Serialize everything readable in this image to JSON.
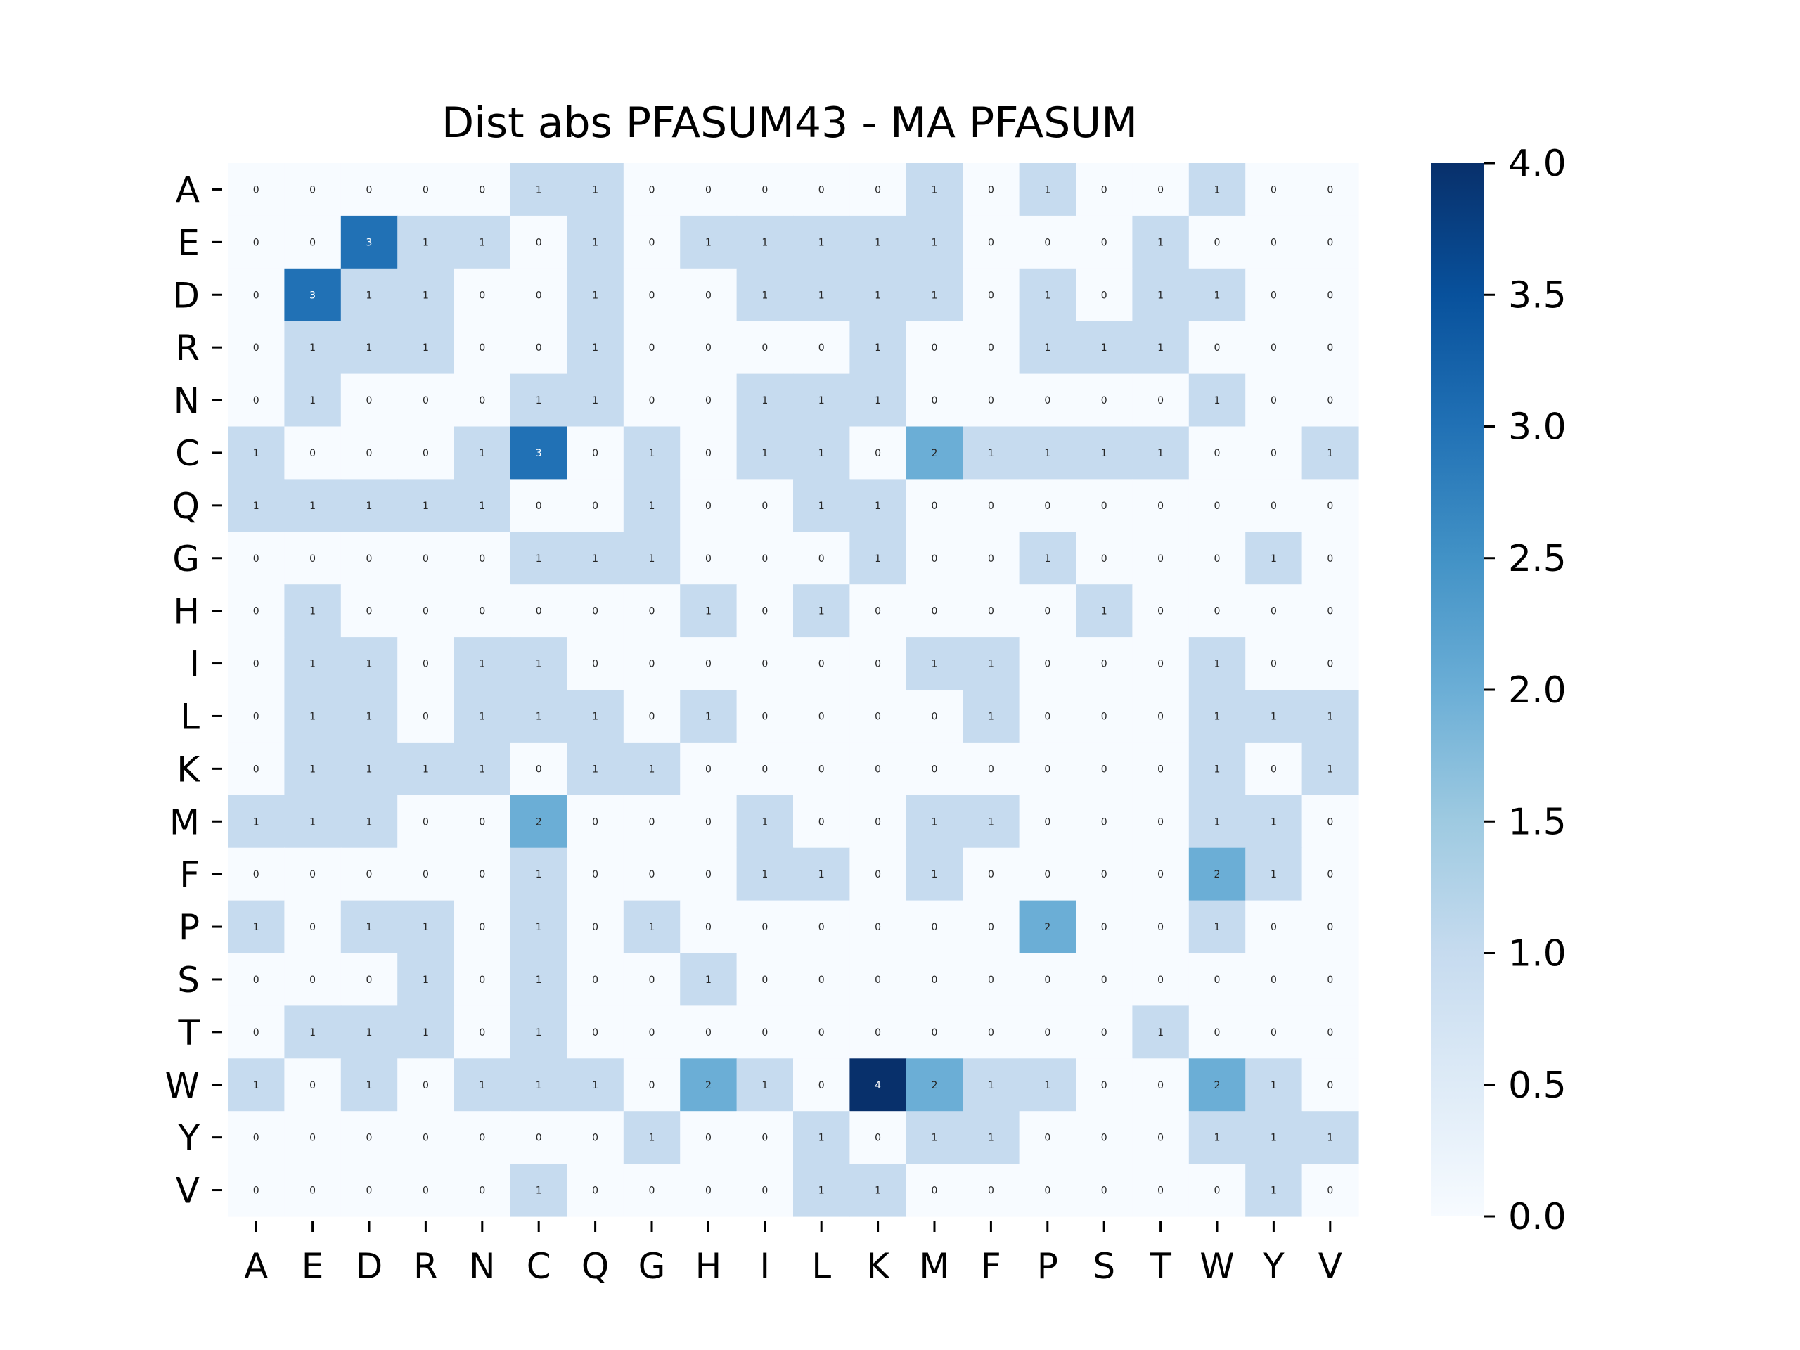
{
  "chart_data": {
    "type": "heatmap",
    "title": "Dist abs PFASUM43 - MA PFASUM",
    "xlabel": "",
    "ylabel": "",
    "x_labels": [
      "A",
      "E",
      "D",
      "R",
      "N",
      "C",
      "Q",
      "G",
      "H",
      "I",
      "L",
      "K",
      "M",
      "F",
      "P",
      "S",
      "T",
      "W",
      "Y",
      "V"
    ],
    "y_labels": [
      "A",
      "E",
      "D",
      "R",
      "N",
      "C",
      "Q",
      "G",
      "H",
      "I",
      "L",
      "K",
      "M",
      "F",
      "P",
      "S",
      "T",
      "W",
      "Y",
      "V"
    ],
    "values": [
      [
        0,
        0,
        0,
        0,
        0,
        1,
        1,
        0,
        0,
        0,
        0,
        0,
        1,
        0,
        1,
        0,
        0,
        1,
        0,
        0
      ],
      [
        0,
        0,
        3,
        1,
        1,
        0,
        1,
        0,
        1,
        1,
        1,
        1,
        1,
        0,
        0,
        0,
        1,
        0,
        0,
        0
      ],
      [
        0,
        3,
        1,
        1,
        0,
        0,
        1,
        0,
        0,
        1,
        1,
        1,
        1,
        0,
        1,
        0,
        1,
        1,
        0,
        0
      ],
      [
        0,
        1,
        1,
        1,
        0,
        0,
        1,
        0,
        0,
        0,
        0,
        1,
        0,
        0,
        1,
        1,
        1,
        0,
        0,
        0
      ],
      [
        0,
        1,
        0,
        0,
        0,
        1,
        1,
        0,
        0,
        1,
        1,
        1,
        0,
        0,
        0,
        0,
        0,
        1,
        0,
        0
      ],
      [
        1,
        0,
        0,
        0,
        1,
        3,
        0,
        1,
        0,
        1,
        1,
        0,
        2,
        1,
        1,
        1,
        1,
        0,
        0,
        1
      ],
      [
        1,
        1,
        1,
        1,
        1,
        0,
        0,
        1,
        0,
        0,
        1,
        1,
        0,
        0,
        0,
        0,
        0,
        0,
        0,
        0
      ],
      [
        0,
        0,
        0,
        0,
        0,
        1,
        1,
        1,
        0,
        0,
        0,
        1,
        0,
        0,
        1,
        0,
        0,
        0,
        1,
        0
      ],
      [
        0,
        1,
        0,
        0,
        0,
        0,
        0,
        0,
        1,
        0,
        1,
        0,
        0,
        0,
        0,
        1,
        0,
        0,
        0,
        0
      ],
      [
        0,
        1,
        1,
        0,
        1,
        1,
        0,
        0,
        0,
        0,
        0,
        0,
        1,
        1,
        0,
        0,
        0,
        1,
        0,
        0
      ],
      [
        0,
        1,
        1,
        0,
        1,
        1,
        1,
        0,
        1,
        0,
        0,
        0,
        0,
        1,
        0,
        0,
        0,
        1,
        1,
        1
      ],
      [
        0,
        1,
        1,
        1,
        1,
        0,
        1,
        1,
        0,
        0,
        0,
        0,
        0,
        0,
        0,
        0,
        0,
        1,
        0,
        1
      ],
      [
        1,
        1,
        1,
        0,
        0,
        2,
        0,
        0,
        0,
        1,
        0,
        0,
        1,
        1,
        0,
        0,
        0,
        1,
        1,
        0
      ],
      [
        0,
        0,
        0,
        0,
        0,
        1,
        0,
        0,
        0,
        1,
        1,
        0,
        1,
        0,
        0,
        0,
        0,
        2,
        1,
        0
      ],
      [
        1,
        0,
        1,
        1,
        0,
        1,
        0,
        1,
        0,
        0,
        0,
        0,
        0,
        0,
        2,
        0,
        0,
        1,
        0,
        0
      ],
      [
        0,
        0,
        0,
        1,
        0,
        1,
        0,
        0,
        1,
        0,
        0,
        0,
        0,
        0,
        0,
        0,
        0,
        0,
        0,
        0
      ],
      [
        0,
        1,
        1,
        1,
        0,
        1,
        0,
        0,
        0,
        0,
        0,
        0,
        0,
        0,
        0,
        0,
        1,
        0,
        0,
        0
      ],
      [
        1,
        0,
        1,
        0,
        1,
        1,
        1,
        0,
        2,
        1,
        0,
        4,
        2,
        1,
        1,
        0,
        0,
        2,
        1,
        0
      ],
      [
        0,
        0,
        0,
        0,
        0,
        0,
        0,
        1,
        0,
        0,
        1,
        0,
        1,
        1,
        0,
        0,
        0,
        1,
        1,
        1
      ],
      [
        0,
        0,
        0,
        0,
        0,
        1,
        0,
        0,
        0,
        0,
        1,
        1,
        0,
        0,
        0,
        0,
        0,
        0,
        1,
        0
      ]
    ],
    "colormap": "Blues",
    "vmin": 0,
    "vmax": 4,
    "colorbar_ticks": [
      "0.0",
      "0.5",
      "1.0",
      "1.5",
      "2.0",
      "2.5",
      "3.0",
      "3.5",
      "4.0"
    ],
    "annotations": true,
    "grid": false
  }
}
